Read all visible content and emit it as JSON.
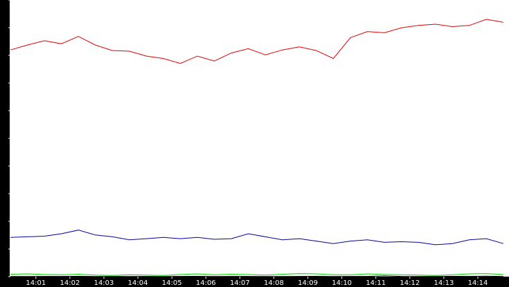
{
  "chart_data": {
    "type": "line",
    "title": "",
    "xlabel": "",
    "ylabel": "",
    "ylim": [
      0,
      4515
    ],
    "xlim": [
      "14:00:15",
      "14:14:55"
    ],
    "grid": false,
    "legend": "none",
    "y_ticks": [
      "0",
      "451",
      "903",
      "1354",
      "1806",
      "2257",
      "2709",
      "3160",
      "3612",
      "4063",
      "4515"
    ],
    "x_ticks": [
      "14:01",
      "14:02",
      "14:03",
      "14:04",
      "14:05",
      "14:06",
      "14:07",
      "14:08",
      "14:09",
      "14:10",
      "14:11",
      "14:12",
      "14:13",
      "14:14"
    ],
    "x": [
      "14:00:15",
      "14:00:45",
      "14:01:15",
      "14:01:45",
      "14:02:15",
      "14:02:45",
      "14:03:15",
      "14:03:45",
      "14:04:15",
      "14:04:45",
      "14:05:15",
      "14:05:45",
      "14:06:15",
      "14:06:45",
      "14:07:15",
      "14:07:45",
      "14:08:15",
      "14:08:45",
      "14:09:15",
      "14:09:45",
      "14:10:15",
      "14:10:45",
      "14:11:15",
      "14:11:45",
      "14:12:15",
      "14:12:45",
      "14:13:15",
      "14:13:45",
      "14:14:15",
      "14:14:45"
    ],
    "series": [
      {
        "color": "#e00000",
        "values": [
          3700,
          3780,
          3850,
          3800,
          3920,
          3780,
          3690,
          3680,
          3600,
          3560,
          3480,
          3600,
          3520,
          3650,
          3720,
          3620,
          3700,
          3750,
          3690,
          3560,
          3900,
          4000,
          3980,
          4060,
          4100,
          4120,
          4080,
          4100,
          4200,
          4150
        ]
      },
      {
        "color": "#0000a0",
        "values": [
          640,
          650,
          660,
          700,
          760,
          680,
          650,
          600,
          620,
          640,
          620,
          640,
          610,
          620,
          700,
          650,
          600,
          620,
          580,
          540,
          580,
          600,
          560,
          570,
          560,
          520,
          540,
          600,
          620,
          540
        ]
      },
      {
        "color": "#00cc00",
        "values": [
          40,
          45,
          35,
          30,
          40,
          25,
          20,
          30,
          25,
          20,
          35,
          45,
          30,
          40,
          35,
          25,
          40,
          50,
          45,
          30,
          30,
          45,
          35,
          30,
          25,
          20,
          30,
          45,
          50,
          35
        ]
      },
      {
        "color": "#000000",
        "values": [
          3,
          2,
          5,
          4,
          6,
          3,
          4,
          2,
          5,
          3,
          4,
          6,
          3,
          4,
          5,
          2,
          3,
          4,
          6,
          3,
          4,
          5,
          12,
          4,
          3,
          5,
          6,
          4,
          8,
          3
        ]
      }
    ]
  }
}
